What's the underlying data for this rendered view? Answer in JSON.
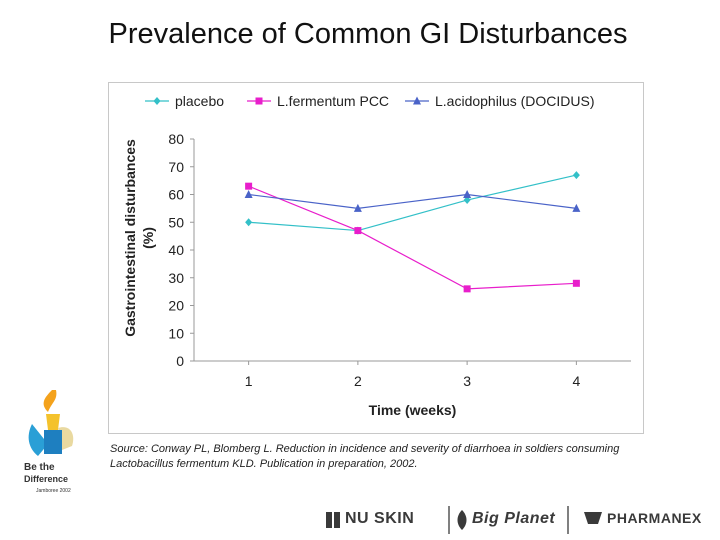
{
  "slide": {
    "title": "Prevalence of Common GI Disturbances",
    "source_note": "Source: Conway PL, Blomberg L. Reduction in incidence and severity of diarrhoea in soldiers consuming Lactobacillus fermentum KLD. Publication in preparation, 2002."
  },
  "logo": {
    "line1": "Be the",
    "line2": "Difference",
    "line3": "Jamboree 2002"
  },
  "footer": {
    "brand1": "NU SKIN",
    "brand2": "Big Planet",
    "brand3": "PHARMANEX"
  },
  "colors": {
    "placebo": "#33c0c8",
    "fermentum": "#e81ecb",
    "acidophilus": "#4a63c8"
  },
  "chart_data": {
    "type": "line",
    "title": "",
    "xlabel": "Time (weeks)",
    "ylabel": "Gastrointestinal disturbances (%)",
    "x": [
      1,
      2,
      3,
      4
    ],
    "x_ticks": [
      "1",
      "2",
      "3",
      "4"
    ],
    "ylim": [
      0,
      80
    ],
    "y_ticks": [
      "0",
      "10",
      "20",
      "30",
      "40",
      "50",
      "60",
      "70",
      "80"
    ],
    "legend_position": "top",
    "grid": false,
    "series": [
      {
        "name": "placebo",
        "marker": "diamond",
        "color": "#33c0c8",
        "values": [
          50,
          47,
          58,
          67
        ]
      },
      {
        "name": "L.fermentum PCC",
        "marker": "square",
        "color": "#e81ecb",
        "values": [
          63,
          47,
          26,
          28
        ]
      },
      {
        "name": "L.acidophilus (DOCIDUS)",
        "marker": "triangle",
        "color": "#4a63c8",
        "values": [
          60,
          55,
          60,
          55
        ]
      }
    ]
  }
}
